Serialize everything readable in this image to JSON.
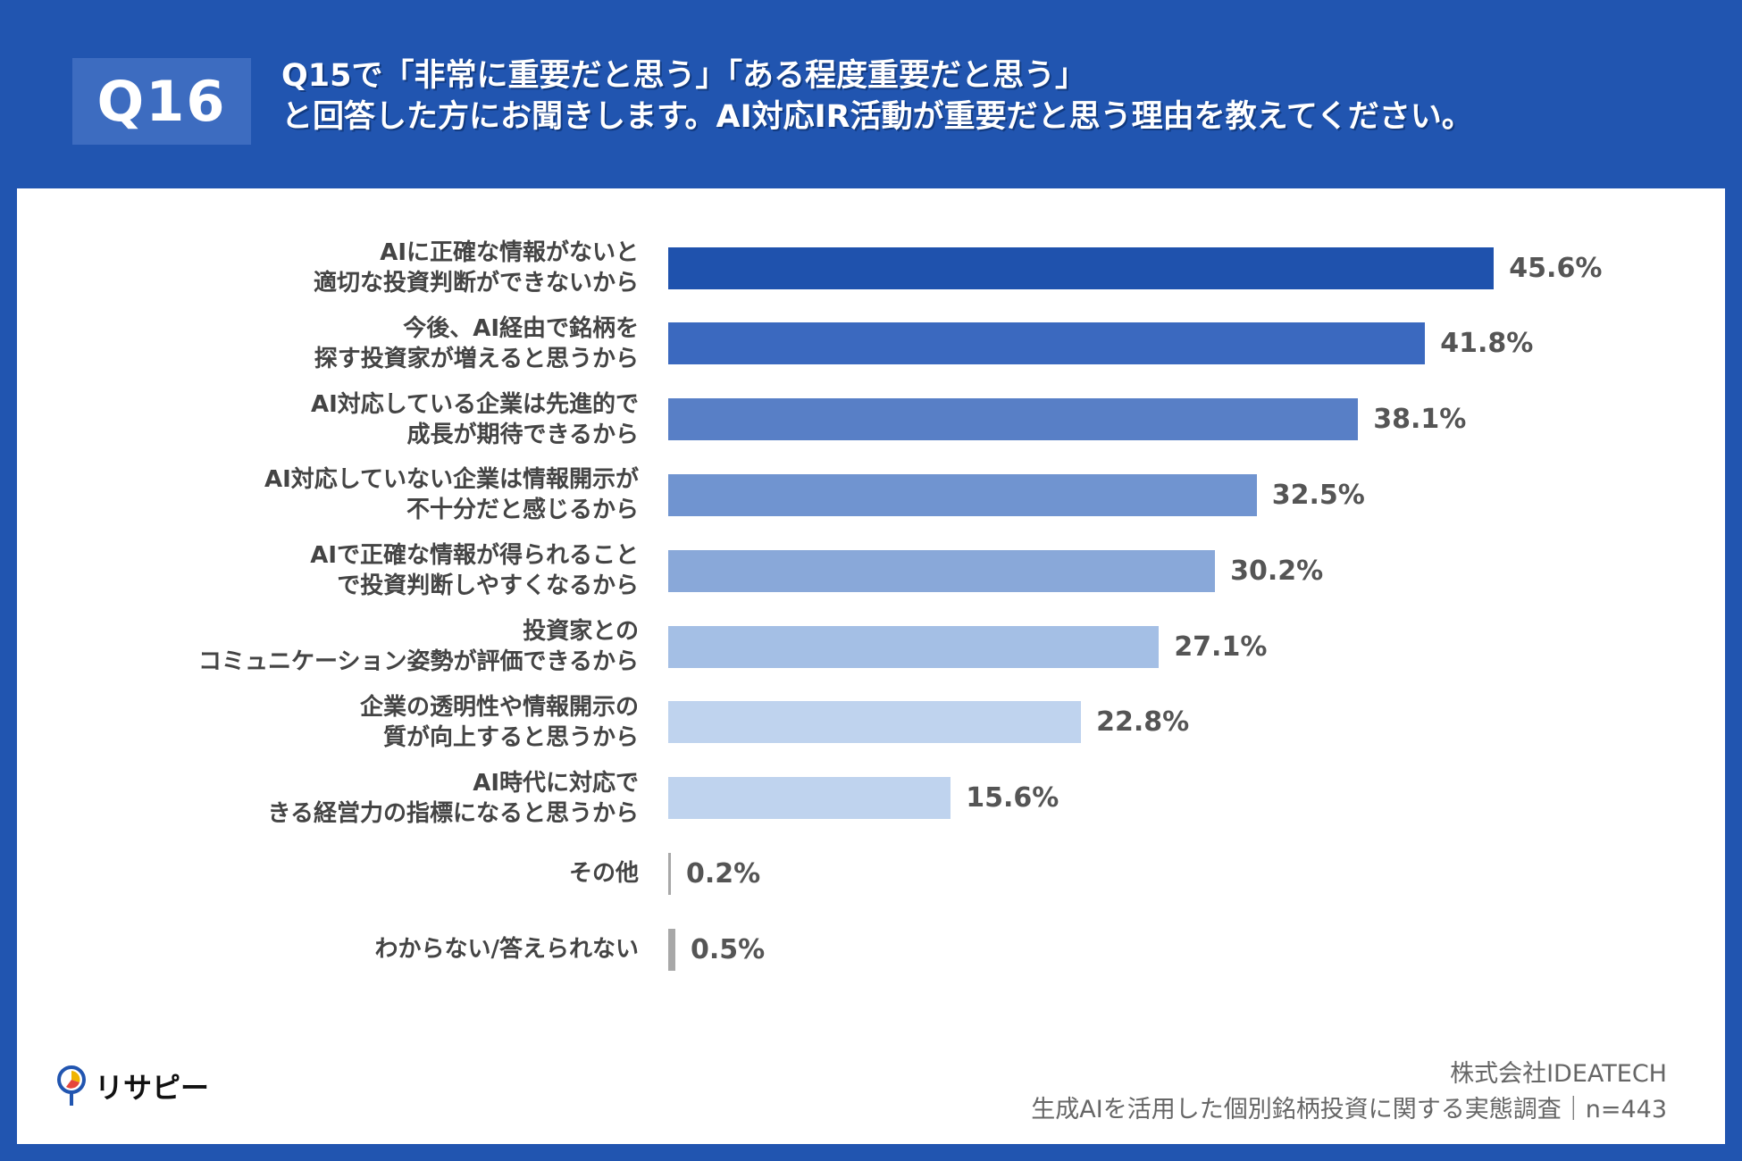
{
  "header": {
    "badge": "Q16",
    "title_line1": "Q15で「非常に重要だと思う」「ある程度重要だと思う」",
    "title_line2": "と回答した方にお聞きします。AI対応IR活動が重要だと思う理由を教えてください。"
  },
  "chart_data": {
    "type": "bar",
    "orientation": "horizontal",
    "unit": "%",
    "xlim": [
      0,
      50
    ],
    "grid": false,
    "categories": [
      [
        "AIに正確な情報がないと",
        "適切な投資判断ができないから"
      ],
      [
        "今後、AI経由で銘柄を",
        "探す投資家が増えると思うから"
      ],
      [
        "AI対応している企業は先進的で",
        "成長が期待できるから"
      ],
      [
        "AI対応していない企業は情報開示が",
        "不十分だと感じるから"
      ],
      [
        "AIで正確な情報が得られること",
        "で投資判断しやすくなるから"
      ],
      [
        "投資家との",
        "コミュニケーション姿勢が評価できるから"
      ],
      [
        "企業の透明性や情報開示の",
        "質が向上すると思うから"
      ],
      [
        "AI時代に対応で",
        "きる経営力の指標になると思うから"
      ],
      [
        "その他"
      ],
      [
        "わからない/答えられない"
      ]
    ],
    "values": [
      45.6,
      41.8,
      38.1,
      32.5,
      30.2,
      27.1,
      22.8,
      15.6,
      0.2,
      0.5
    ],
    "value_labels": [
      "45.6%",
      "41.8%",
      "38.1%",
      "32.5%",
      "30.2%",
      "27.1%",
      "22.8%",
      "15.6%",
      "0.2%",
      "0.5%"
    ],
    "colors": [
      "#1f52ad",
      "#3b69bf",
      "#587fc6",
      "#7094d0",
      "#89a8d9",
      "#a4bfe5",
      "#bfd3ee",
      "#bfd3ee",
      "#a8a8a8",
      "#a8a8a8"
    ]
  },
  "footer": {
    "company": "株式会社IDEATECH",
    "survey": "生成AIを活用した個別銘柄投資に関する実態調査｜n=443"
  },
  "logo": {
    "text": "リサピー"
  }
}
